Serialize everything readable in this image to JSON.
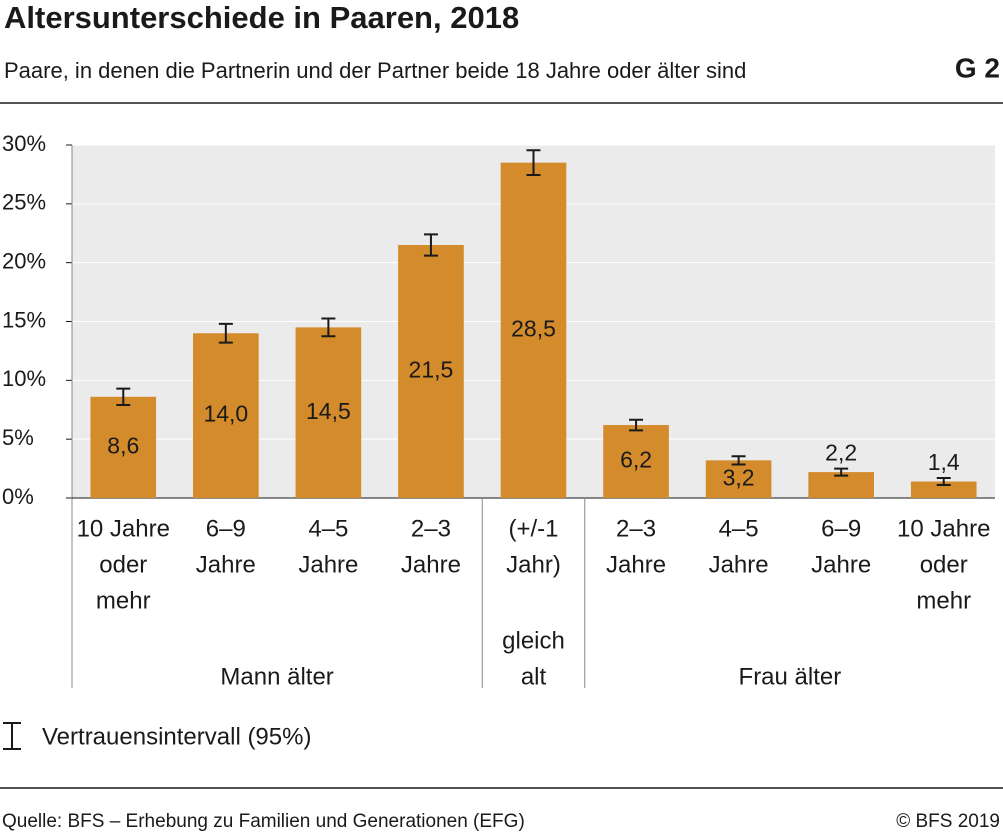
{
  "chart_data": {
    "type": "bar",
    "title": "Altersunterschiede in Paaren, 2018",
    "subtitle": "Paare, in denen die Partnerin und der Partner beide 18 Jahre oder älter sind",
    "chart_id": "G 2",
    "groups": [
      {
        "label": [
          "Mann älter"
        ],
        "categories": [
          [
            "10 Jahre",
            "oder",
            "mehr"
          ],
          [
            "6–9",
            "Jahre"
          ],
          [
            "4–5",
            "Jahre"
          ],
          [
            "2–3",
            "Jahre"
          ]
        ]
      },
      {
        "label": [
          "gleich",
          "alt"
        ],
        "categories": [
          [
            "(+/-1",
            "Jahr)"
          ]
        ]
      },
      {
        "label": [
          "Frau älter"
        ],
        "categories": [
          [
            "2–3",
            "Jahre"
          ],
          [
            "4–5",
            "Jahre"
          ],
          [
            "6–9",
            "Jahre"
          ],
          [
            "10 Jahre",
            "oder",
            "mehr"
          ]
        ]
      }
    ],
    "values": [
      8.6,
      14.0,
      14.5,
      21.5,
      28.5,
      6.2,
      3.2,
      2.2,
      1.4
    ],
    "value_labels": [
      "8,6",
      "14,0",
      "14,5",
      "21,5",
      "28,5",
      "6,2",
      "3,2",
      "2,2",
      "1,4"
    ],
    "errors": [
      0.7,
      0.8,
      0.75,
      0.9,
      1.05,
      0.45,
      0.35,
      0.3,
      0.3
    ],
    "color": "#d38b2b",
    "ylim": [
      0,
      30
    ],
    "yticks": [
      {
        "value": 0,
        "label": "0%"
      },
      {
        "value": 5,
        "label": "5%"
      },
      {
        "value": 10,
        "label": "10%"
      },
      {
        "value": 15,
        "label": "15%"
      },
      {
        "value": 20,
        "label": "20%"
      },
      {
        "value": 25,
        "label": "25%"
      },
      {
        "value": 30,
        "label": "30%"
      }
    ],
    "legend": "Vertrauensintervall (95%)",
    "source": "Quelle: BFS – Erhebung zu Familien und Generationen (EFG)",
    "copyright": "© BFS 2019"
  }
}
